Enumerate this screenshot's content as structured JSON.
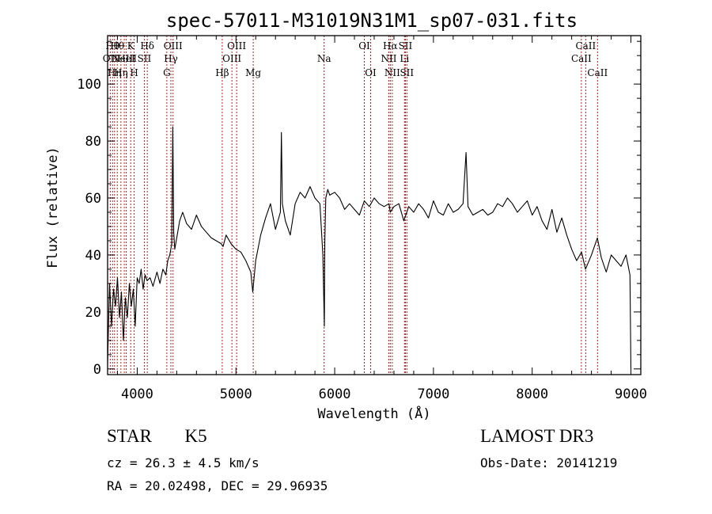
{
  "chart_data": {
    "type": "line",
    "title": "spec-57011-M31019N31M1_sp07-031.fits",
    "xlabel": "Wavelength (Å)",
    "ylabel": "Flux (relative)",
    "xlim": [
      3700,
      9100
    ],
    "ylim": [
      -2,
      117
    ],
    "xticks": [
      4000,
      5000,
      6000,
      7000,
      8000,
      9000
    ],
    "yticks": [
      0,
      20,
      40,
      60,
      80,
      100
    ],
    "line_color": "#000000",
    "marker_color": "#b22222",
    "spectrum": {
      "name": "flux",
      "x": [
        3700,
        3720,
        3740,
        3760,
        3780,
        3800,
        3820,
        3840,
        3860,
        3880,
        3900,
        3920,
        3940,
        3960,
        3980,
        4000,
        4020,
        4040,
        4060,
        4080,
        4100,
        4130,
        4160,
        4200,
        4230,
        4260,
        4290,
        4310,
        4330,
        4340,
        4350,
        4360,
        4370,
        4380,
        4400,
        4430,
        4460,
        4500,
        4550,
        4600,
        4650,
        4700,
        4750,
        4800,
        4850,
        4870,
        4900,
        4950,
        5000,
        5050,
        5100,
        5150,
        5170,
        5200,
        5250,
        5300,
        5350,
        5400,
        5450,
        5460,
        5470,
        5500,
        5550,
        5600,
        5650,
        5700,
        5750,
        5800,
        5850,
        5880,
        5895,
        5900,
        5910,
        5930,
        5950,
        6000,
        6050,
        6100,
        6150,
        6200,
        6250,
        6300,
        6350,
        6400,
        6450,
        6500,
        6550,
        6563,
        6600,
        6650,
        6700,
        6750,
        6800,
        6850,
        6900,
        6950,
        7000,
        7050,
        7100,
        7150,
        7200,
        7250,
        7300,
        7330,
        7350,
        7400,
        7450,
        7500,
        7550,
        7600,
        7650,
        7700,
        7750,
        7800,
        7850,
        7900,
        7950,
        8000,
        8050,
        8100,
        8150,
        8200,
        8250,
        8300,
        8350,
        8400,
        8450,
        8500,
        8540,
        8600,
        8660,
        8700,
        8750,
        8800,
        8850,
        8900,
        8950,
        8990,
        9000
      ],
      "y": [
        2,
        30,
        15,
        28,
        22,
        32,
        18,
        27,
        10,
        25,
        18,
        30,
        22,
        28,
        15,
        32,
        30,
        35,
        28,
        33,
        31,
        32,
        29,
        34,
        30,
        35,
        33,
        38,
        40,
        42,
        44,
        85,
        48,
        42,
        46,
        52,
        55,
        51,
        49,
        54,
        50,
        48,
        46,
        45,
        44,
        43,
        47,
        44,
        42,
        41,
        38,
        34,
        27,
        38,
        47,
        53,
        58,
        49,
        55,
        83,
        58,
        52,
        47,
        58,
        62,
        60,
        64,
        60,
        58,
        40,
        15,
        45,
        60,
        63,
        61,
        62,
        60,
        56,
        58,
        56,
        54,
        59,
        57,
        60,
        58,
        57,
        58,
        55,
        57,
        58,
        52,
        57,
        55,
        58,
        56,
        53,
        59,
        55,
        54,
        58,
        55,
        56,
        58,
        76,
        57,
        54,
        55,
        56,
        54,
        55,
        58,
        57,
        60,
        58,
        55,
        57,
        59,
        54,
        57,
        52,
        49,
        56,
        48,
        53,
        47,
        42,
        38,
        41,
        35,
        40,
        46,
        39,
        34,
        40,
        38,
        36,
        40,
        33,
        0
      ]
    },
    "line_markers": [
      {
        "x": 3727,
        "label": "OII",
        "row": 2
      },
      {
        "x": 3750,
        "label": "Hθ",
        "row": 1
      },
      {
        "x": 3770,
        "label": "Hη",
        "row": 3
      },
      {
        "x": 3798,
        "label": "Hθ",
        "row": 1
      },
      {
        "x": 3835,
        "label": "Hη",
        "row": 3
      },
      {
        "x": 3869,
        "label": "NeIII",
        "row": 2
      },
      {
        "x": 3889,
        "label": "HeI",
        "row": 2
      },
      {
        "x": 3934,
        "label": "K",
        "row": 1
      },
      {
        "x": 3969,
        "label": "H",
        "row": 3
      },
      {
        "x": 4072,
        "label": "SII",
        "row": 2
      },
      {
        "x": 4102,
        "label": "Hδ",
        "row": 1
      },
      {
        "x": 4300,
        "label": "G",
        "row": 3
      },
      {
        "x": 4341,
        "label": "Hγ",
        "row": 2
      },
      {
        "x": 4363,
        "label": "OIII",
        "row": 1
      },
      {
        "x": 4861,
        "label": "Hβ",
        "row": 3
      },
      {
        "x": 4959,
        "label": "OIII",
        "row": 2
      },
      {
        "x": 5007,
        "label": "OIII",
        "row": 1
      },
      {
        "x": 5175,
        "label": "Mg",
        "row": 3
      },
      {
        "x": 5893,
        "label": "Na",
        "row": 2
      },
      {
        "x": 6300,
        "label": "OI",
        "row": 1
      },
      {
        "x": 6364,
        "label": "OI",
        "row": 3
      },
      {
        "x": 6548,
        "label": "NII",
        "row": 2
      },
      {
        "x": 6563,
        "label": "Hα",
        "row": 1
      },
      {
        "x": 6583,
        "label": "NII",
        "row": 3
      },
      {
        "x": 6707,
        "label": "Li",
        "row": 2
      },
      {
        "x": 6716,
        "label": "SII",
        "row": 1
      },
      {
        "x": 6731,
        "label": "SII",
        "row": 3
      },
      {
        "x": 8498,
        "label": "CaII",
        "row": 2
      },
      {
        "x": 8542,
        "label": "CaII",
        "row": 1
      },
      {
        "x": 8662,
        "label": "CaII",
        "row": 3
      }
    ]
  },
  "info": {
    "object_class": "STAR",
    "subclass": "K5",
    "redshift": "cz = 26.3 ± 4.5 km/s",
    "coords": "RA =  20.02498, DEC =  29.96935",
    "survey": "LAMOST DR3",
    "obs_date": "Obs-Date: 20141219"
  }
}
